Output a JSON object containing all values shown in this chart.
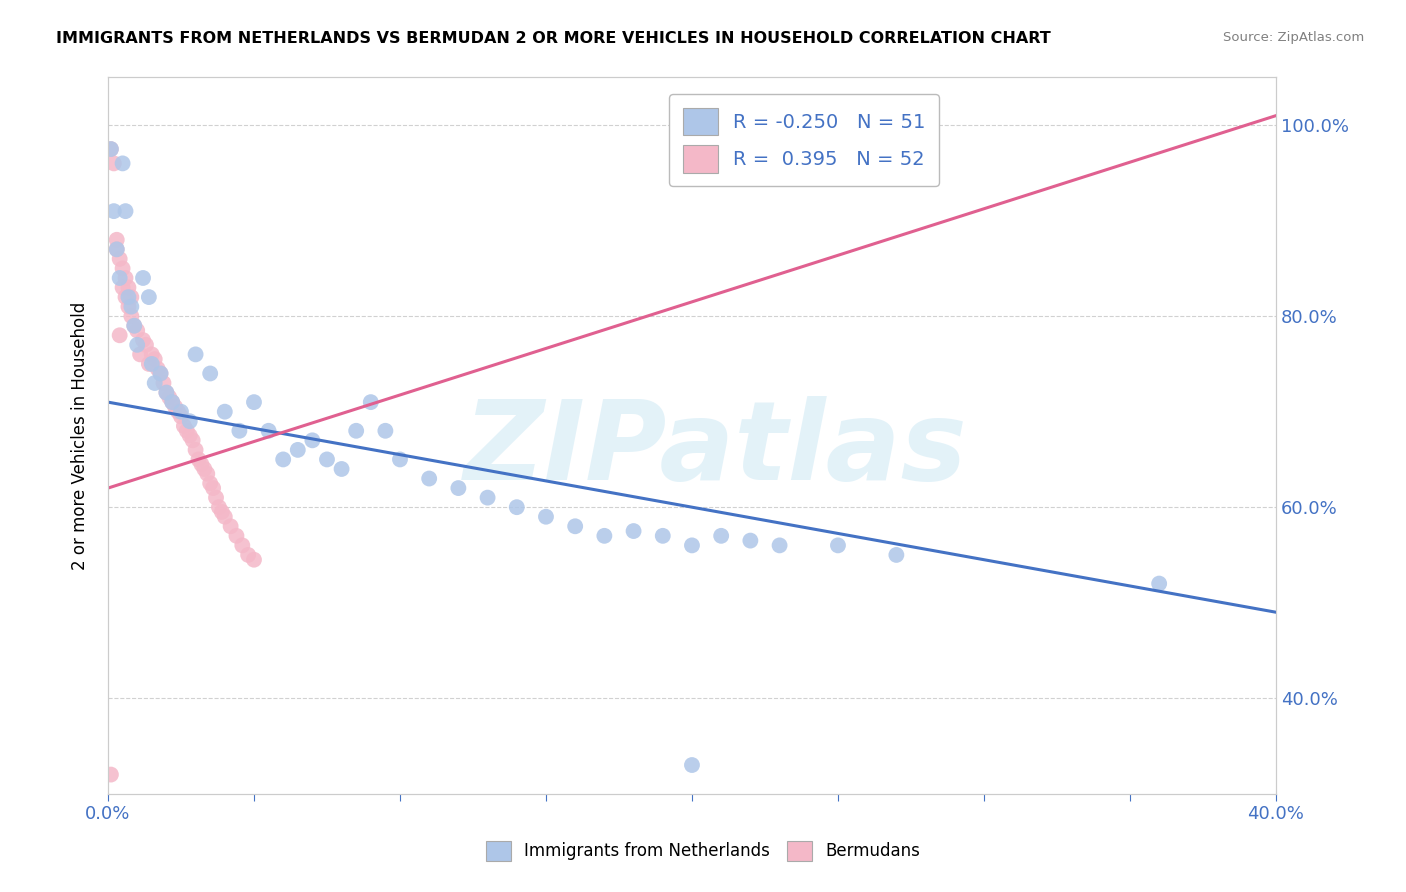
{
  "title": "IMMIGRANTS FROM NETHERLANDS VS BERMUDAN 2 OR MORE VEHICLES IN HOUSEHOLD CORRELATION CHART",
  "source": "Source: ZipAtlas.com",
  "xlabel_blue": "Immigrants from Netherlands",
  "xlabel_pink": "Bermudans",
  "ylabel": "2 or more Vehicles in Household",
  "watermark": "ZIPatlas",
  "xlim": [
    0.0,
    0.4
  ],
  "ylim": [
    0.3,
    1.05
  ],
  "xticks": [
    0.0,
    0.05,
    0.1,
    0.15,
    0.2,
    0.25,
    0.3,
    0.35,
    0.4
  ],
  "yticks": [
    0.4,
    0.6,
    0.8,
    1.0
  ],
  "blue_R": -0.25,
  "blue_N": 51,
  "pink_R": 0.395,
  "pink_N": 52,
  "blue_color": "#aec6e8",
  "pink_color": "#f4b8c8",
  "blue_line_color": "#4472c4",
  "pink_line_color": "#e06090",
  "blue_scatter_x": [
    0.001,
    0.002,
    0.003,
    0.004,
    0.005,
    0.006,
    0.007,
    0.008,
    0.009,
    0.01,
    0.012,
    0.014,
    0.015,
    0.016,
    0.018,
    0.02,
    0.022,
    0.025,
    0.028,
    0.03,
    0.035,
    0.04,
    0.045,
    0.05,
    0.055,
    0.06,
    0.065,
    0.07,
    0.075,
    0.08,
    0.085,
    0.09,
    0.095,
    0.1,
    0.11,
    0.12,
    0.13,
    0.14,
    0.15,
    0.16,
    0.17,
    0.18,
    0.19,
    0.2,
    0.21,
    0.22,
    0.23,
    0.25,
    0.27,
    0.36,
    0.2
  ],
  "blue_scatter_y": [
    0.975,
    0.91,
    0.87,
    0.84,
    0.96,
    0.91,
    0.82,
    0.81,
    0.79,
    0.77,
    0.84,
    0.82,
    0.75,
    0.73,
    0.74,
    0.72,
    0.71,
    0.7,
    0.69,
    0.76,
    0.74,
    0.7,
    0.68,
    0.71,
    0.68,
    0.65,
    0.66,
    0.67,
    0.65,
    0.64,
    0.68,
    0.71,
    0.68,
    0.65,
    0.63,
    0.62,
    0.61,
    0.6,
    0.59,
    0.58,
    0.57,
    0.575,
    0.57,
    0.56,
    0.57,
    0.565,
    0.56,
    0.56,
    0.55,
    0.52,
    0.33
  ],
  "pink_scatter_x": [
    0.001,
    0.002,
    0.003,
    0.004,
    0.005,
    0.006,
    0.007,
    0.008,
    0.009,
    0.01,
    0.011,
    0.012,
    0.013,
    0.014,
    0.015,
    0.016,
    0.017,
    0.018,
    0.019,
    0.02,
    0.021,
    0.022,
    0.023,
    0.024,
    0.025,
    0.026,
    0.027,
    0.028,
    0.029,
    0.03,
    0.031,
    0.032,
    0.033,
    0.034,
    0.035,
    0.036,
    0.037,
    0.038,
    0.039,
    0.04,
    0.042,
    0.044,
    0.046,
    0.048,
    0.05,
    0.003,
    0.004,
    0.005,
    0.006,
    0.007,
    0.008,
    0.001
  ],
  "pink_scatter_y": [
    0.975,
    0.96,
    0.88,
    0.78,
    0.83,
    0.82,
    0.81,
    0.8,
    0.79,
    0.785,
    0.76,
    0.775,
    0.77,
    0.75,
    0.76,
    0.755,
    0.745,
    0.74,
    0.73,
    0.72,
    0.715,
    0.71,
    0.705,
    0.7,
    0.695,
    0.685,
    0.68,
    0.675,
    0.67,
    0.66,
    0.65,
    0.645,
    0.64,
    0.635,
    0.625,
    0.62,
    0.61,
    0.6,
    0.595,
    0.59,
    0.58,
    0.57,
    0.56,
    0.55,
    0.545,
    0.87,
    0.86,
    0.85,
    0.84,
    0.83,
    0.82,
    0.32
  ],
  "blue_trendline_x": [
    0.0,
    0.4
  ],
  "blue_trendline_y": [
    0.71,
    0.49
  ],
  "pink_trendline_x": [
    0.0,
    0.4
  ],
  "pink_trendline_y": [
    0.62,
    1.01
  ]
}
